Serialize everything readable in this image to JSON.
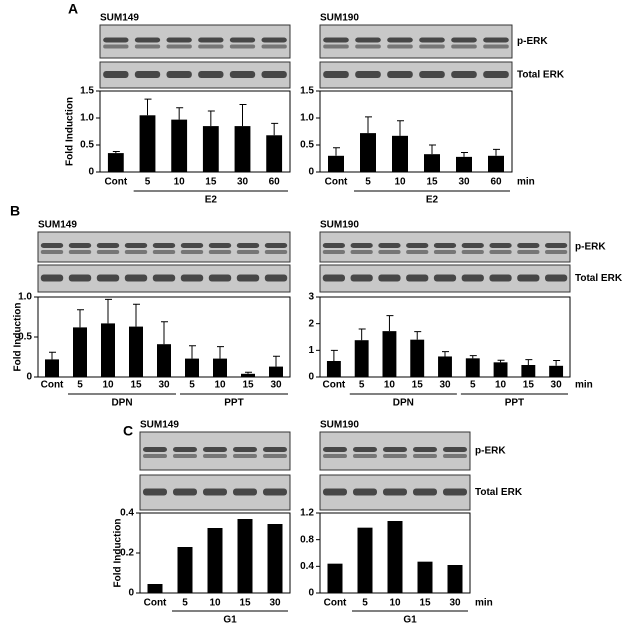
{
  "chart_data": [
    {
      "type": "bar",
      "panel": "A",
      "title": "SUM149",
      "ylabel": "Fold Induction",
      "categories": [
        "Cont",
        "5",
        "10",
        "15",
        "30",
        "60"
      ],
      "values": [
        0.35,
        1.05,
        0.97,
        0.85,
        0.85,
        0.68
      ],
      "errors": [
        0.03,
        0.3,
        0.22,
        0.28,
        0.4,
        0.22
      ],
      "groups": [
        {
          "name": "E2",
          "from": 1,
          "to": 5
        }
      ],
      "color": "#000000",
      "ylim": [
        0,
        1.5
      ],
      "yticks": [
        0,
        0.5,
        {
          "value": 1,
          "label": "1.0"
        },
        1.5
      ]
    },
    {
      "type": "bar",
      "title": "SUM190",
      "blot_labels": [
        "p-ERK",
        "Total ERK"
      ],
      "xunit": "min",
      "categories": [
        "Cont",
        "5",
        "10",
        "15",
        "30",
        "60"
      ],
      "values": [
        0.3,
        0.72,
        0.67,
        0.33,
        0.28,
        0.3
      ],
      "errors": [
        0.15,
        0.3,
        0.28,
        0.17,
        0.08,
        0.12
      ],
      "groups": [
        {
          "name": "E2",
          "from": 1,
          "to": 5
        }
      ],
      "color": "#000000",
      "ylim": [
        0,
        1.5
      ],
      "yticks": [
        0,
        0.5,
        {
          "value": 1,
          "label": "1.0"
        },
        1.5
      ]
    },
    {
      "type": "bar",
      "panel": "B",
      "title": "SUM149",
      "ylabel": "Fold Induction",
      "categories": [
        "Cont",
        "5",
        "10",
        "15",
        "30",
        "5",
        "10",
        "15",
        "30"
      ],
      "values": [
        0.22,
        0.62,
        0.67,
        0.63,
        0.41,
        0.23,
        0.23,
        0.04,
        0.13
      ],
      "errors": [
        0.09,
        0.22,
        0.3,
        0.28,
        0.28,
        0.16,
        0.15,
        0.02,
        0.13
      ],
      "groups": [
        {
          "name": "DPN",
          "from": 1,
          "to": 4
        },
        {
          "name": "PPT",
          "from": 5,
          "to": 8
        }
      ],
      "color": "#000000",
      "ylim": [
        0,
        1
      ],
      "yticks": [
        0,
        0.5,
        {
          "value": 1,
          "label": "1.0"
        }
      ]
    },
    {
      "type": "bar",
      "title": "SUM190",
      "blot_labels": [
        "p-ERK",
        "Total ERK"
      ],
      "xunit": "min",
      "categories": [
        "Cont",
        "5",
        "10",
        "15",
        "30",
        "5",
        "10",
        "15",
        "30"
      ],
      "values": [
        0.6,
        1.38,
        1.72,
        1.4,
        0.77,
        0.7,
        0.55,
        0.45,
        0.42
      ],
      "errors": [
        0.4,
        0.42,
        0.58,
        0.3,
        0.18,
        0.1,
        0.08,
        0.2,
        0.2
      ],
      "groups": [
        {
          "name": "DPN",
          "from": 1,
          "to": 4
        },
        {
          "name": "PPT",
          "from": 5,
          "to": 8
        }
      ],
      "color": "#000000",
      "ylim": [
        0,
        3
      ],
      "yticks": [
        0,
        1,
        2,
        3
      ]
    },
    {
      "type": "bar",
      "panel": "C",
      "title": "SUM149",
      "ylabel": "Fold Induction",
      "categories": [
        "Cont",
        "5",
        "10",
        "15",
        "30"
      ],
      "values": [
        0.045,
        0.23,
        0.325,
        0.37,
        0.345
      ],
      "groups": [
        {
          "name": "G1",
          "from": 1,
          "to": 4
        }
      ],
      "color": "#000000",
      "ylim": [
        0,
        0.4
      ],
      "yticks": [
        0,
        0.2,
        0.4
      ]
    },
    {
      "type": "bar",
      "title": "SUM190",
      "blot_labels": [
        "p-ERK",
        "Total ERK"
      ],
      "xunit": "min",
      "categories": [
        "Cont",
        "5",
        "10",
        "15",
        "30"
      ],
      "values": [
        0.44,
        0.98,
        1.08,
        0.47,
        0.42
      ],
      "groups": [
        {
          "name": "G1",
          "from": 1,
          "to": 4
        }
      ],
      "color": "#000000",
      "ylim": [
        0,
        1.2
      ],
      "yticks": [
        0,
        0.4,
        0.8,
        1.2
      ]
    }
  ]
}
